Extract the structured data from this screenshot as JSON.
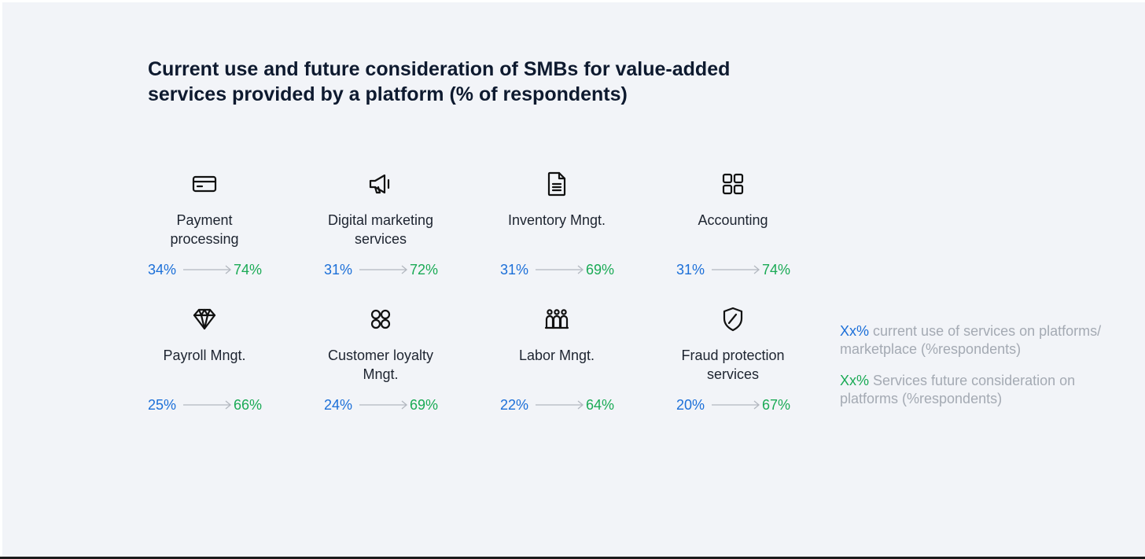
{
  "chart_data": {
    "type": "table",
    "title": "Current use and future consideration of SMBs for value-added services provided by a platform (% of respondents)",
    "items": [
      {
        "icon": "credit-card-icon",
        "label_lines": [
          "Payment",
          "processing"
        ],
        "current": "34%",
        "future": "74%",
        "current_value": 34,
        "future_value": 74
      },
      {
        "icon": "megaphone-icon",
        "label_lines": [
          "Digital marketing",
          "services"
        ],
        "current": "31%",
        "future": "72%",
        "current_value": 31,
        "future_value": 72
      },
      {
        "icon": "document-icon",
        "label_lines": [
          "Inventory Mngt."
        ],
        "current": "31%",
        "future": "69%",
        "current_value": 31,
        "future_value": 69
      },
      {
        "icon": "grid-icon",
        "label_lines": [
          "Accounting"
        ],
        "current": "31%",
        "future": "74%",
        "current_value": 31,
        "future_value": 74
      },
      {
        "icon": "diamond-icon",
        "label_lines": [
          "Payroll Mngt."
        ],
        "current": "25%",
        "future": "66%",
        "current_value": 25,
        "future_value": 66
      },
      {
        "icon": "loyalty-icon",
        "label_lines": [
          "Customer loyalty",
          "Mngt."
        ],
        "current": "24%",
        "future": "69%",
        "current_value": 24,
        "future_value": 69
      },
      {
        "icon": "people-icon",
        "label_lines": [
          "Labor Mngt."
        ],
        "current": "22%",
        "future": "64%",
        "current_value": 22,
        "future_value": 64
      },
      {
        "icon": "shield-icon",
        "label_lines": [
          "Fraud protection",
          "services"
        ],
        "current": "20%",
        "future": "67%",
        "current_value": 20,
        "future_value": 67
      }
    ],
    "legend": {
      "current": {
        "key": "Xx%",
        "lines": [
          "current use of services on platforms/",
          "marketplace (%respondents)"
        ]
      },
      "future": {
        "key": "Xx%",
        "lines": [
          "Services future consideration on",
          "platforms (%respondents)"
        ]
      }
    },
    "colors": {
      "current": "#1b6fd8",
      "future": "#1aaa55",
      "legend_text": "#a4aab3",
      "arrow": "#b3b8c0"
    }
  }
}
